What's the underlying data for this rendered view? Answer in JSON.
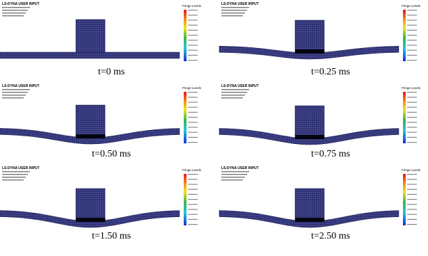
{
  "panels": [
    {
      "header": "LS-DYNA USER INPUT",
      "legend_title": "Fringe Levels",
      "caption": "t=0 ms"
    },
    {
      "header": "LS-DYNA USER INPUT",
      "legend_title": "Fringe Levels",
      "caption": "t=0.25 ms"
    },
    {
      "header": "LS-DYNA USER INPUT",
      "legend_title": "Fringe Levels",
      "caption": "t=0.50 ms"
    },
    {
      "header": "LS-DYNA USER INPUT",
      "legend_title": "Fringe Levels",
      "caption": "t=0.75 ms"
    },
    {
      "header": "LS-DYNA USER INPUT",
      "legend_title": "Fringe Levels",
      "caption": "t=1.50 ms"
    },
    {
      "header": "LS-DYNA USER INPUT",
      "legend_title": "Fringe Levels",
      "caption": "t=2.50 ms"
    }
  ]
}
